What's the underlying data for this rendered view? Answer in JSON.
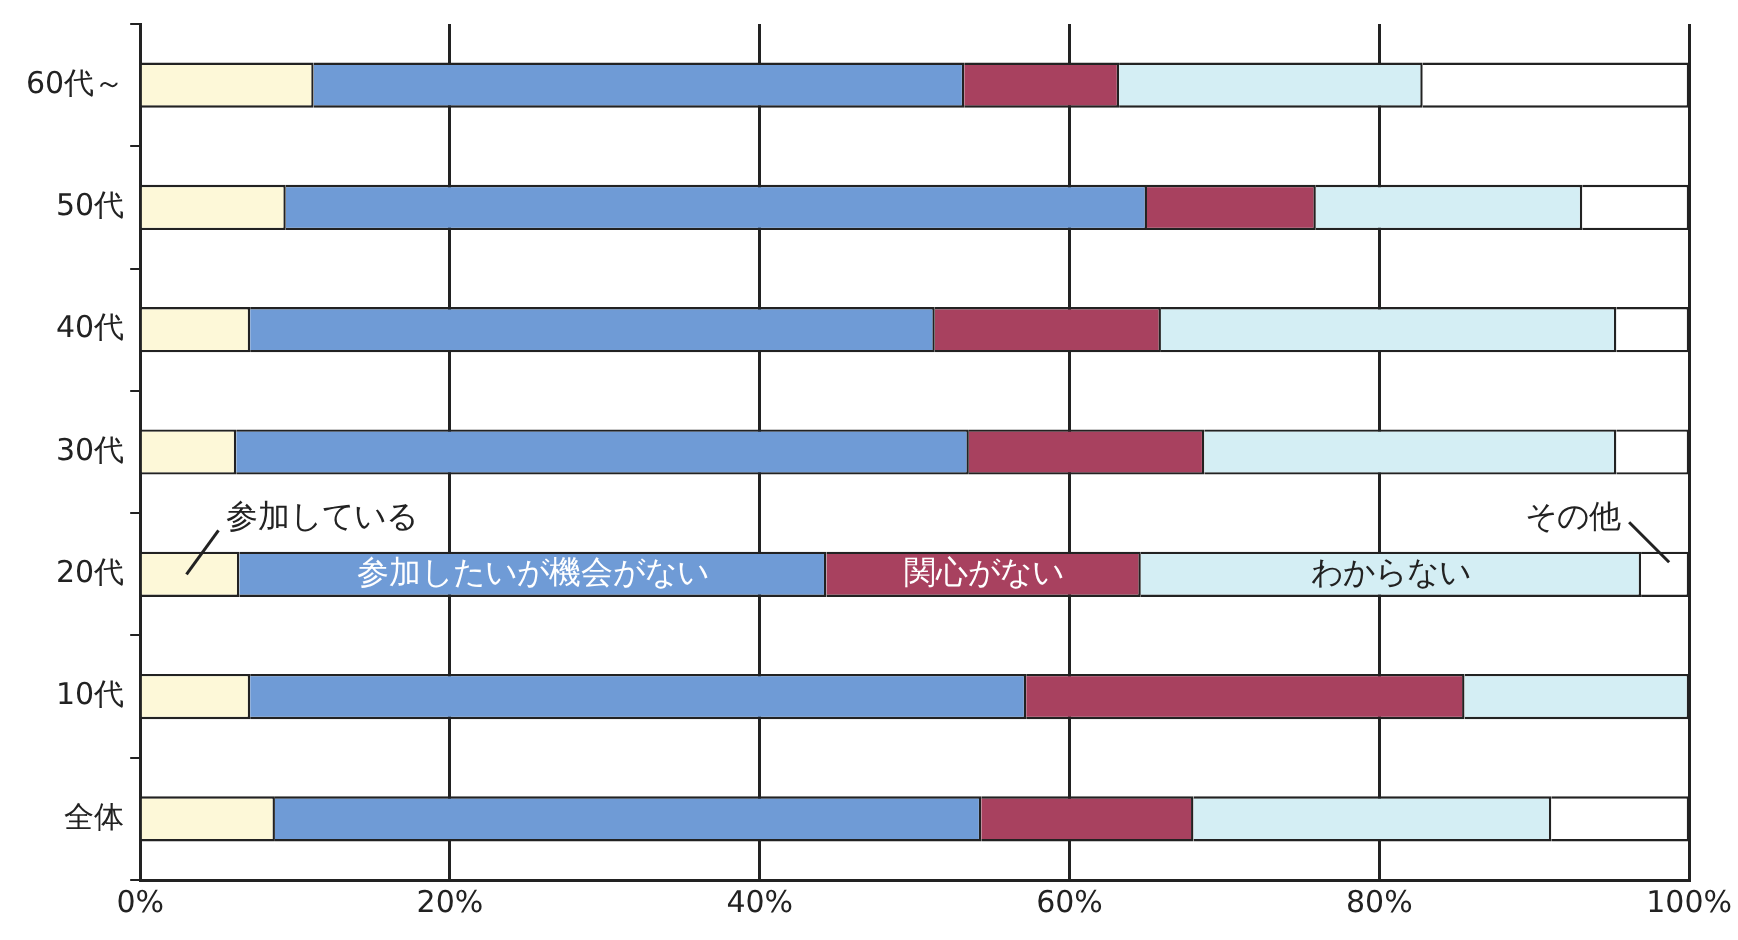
{
  "chart_data": {
    "type": "bar",
    "orientation": "horizontal",
    "stacked": true,
    "categories": [
      "60代～",
      "50代",
      "40代",
      "30代",
      "20代",
      "10代",
      "全体"
    ],
    "series": [
      {
        "name": "参加している",
        "color": "#fdf8d8",
        "values": [
          11.2,
          9.4,
          7.1,
          6.2,
          6.4,
          7.1,
          8.7
        ]
      },
      {
        "name": "参加したいが機会がない",
        "color": "#6f9bd6",
        "values": [
          42.0,
          55.6,
          44.2,
          47.3,
          37.9,
          50.1,
          45.6
        ]
      },
      {
        "name": "関心がない",
        "color": "#a8415f",
        "values": [
          10.0,
          10.9,
          14.6,
          15.2,
          20.3,
          28.3,
          13.7
        ]
      },
      {
        "name": "わからない",
        "color": "#d4eef4",
        "values": [
          19.6,
          17.2,
          29.4,
          26.6,
          32.3,
          14.5,
          23.1
        ]
      },
      {
        "name": "その他",
        "color": "#ffffff",
        "values": [
          17.2,
          6.9,
          4.7,
          4.7,
          3.1,
          0,
          8.9
        ]
      }
    ],
    "xlim": [
      0,
      100
    ],
    "xticks": [
      {
        "value": 0,
        "label": "0%"
      },
      {
        "value": 20,
        "label": "20%"
      },
      {
        "value": 40,
        "label": "40%"
      },
      {
        "value": 60,
        "label": "60%"
      },
      {
        "value": 80,
        "label": "80%"
      },
      {
        "value": 100,
        "label": "100%"
      }
    ],
    "grid": "x",
    "legend": false
  }
}
